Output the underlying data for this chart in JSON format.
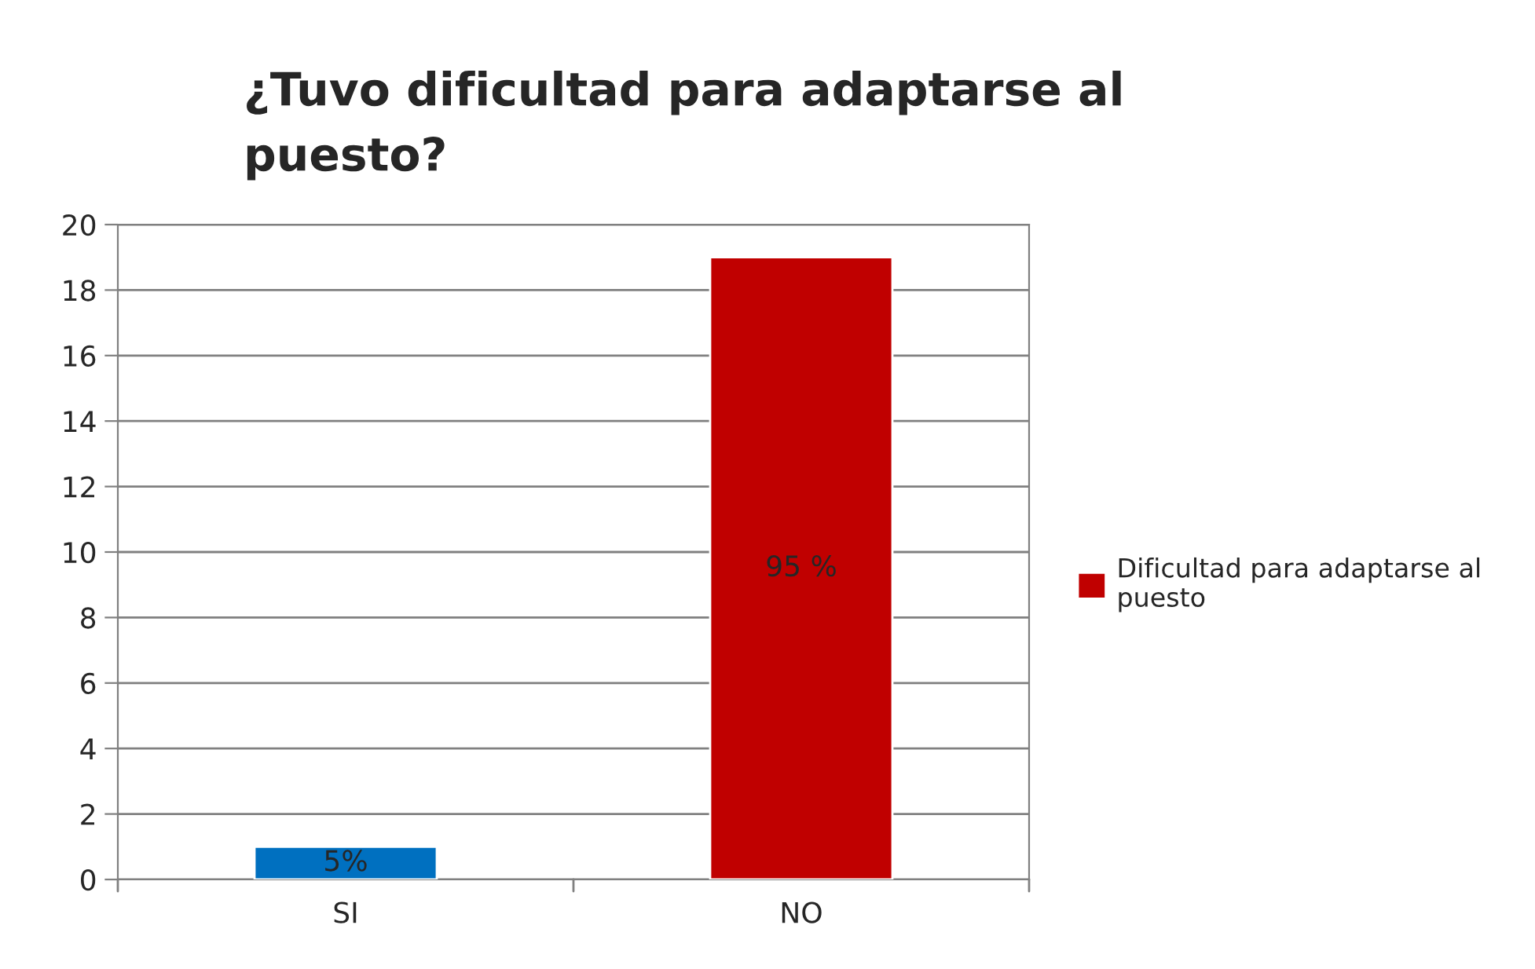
{
  "chart_data": {
    "type": "bar",
    "title": "¿Tuvo dificultad para adaptarse al puesto?",
    "categories": [
      "SI",
      "NO"
    ],
    "series": [
      {
        "name": "Dificultad para adaptarse al puesto",
        "color": "#c00000",
        "colors": [
          "#0070c0",
          "#c00000"
        ],
        "values": [
          1,
          19
        ]
      }
    ],
    "annotations": [
      "5%",
      "95 %"
    ],
    "ylim": [
      0,
      20
    ],
    "yticks": [
      0,
      2,
      4,
      6,
      8,
      10,
      12,
      14,
      16,
      18,
      20
    ],
    "grid": "y",
    "legend": "right"
  }
}
